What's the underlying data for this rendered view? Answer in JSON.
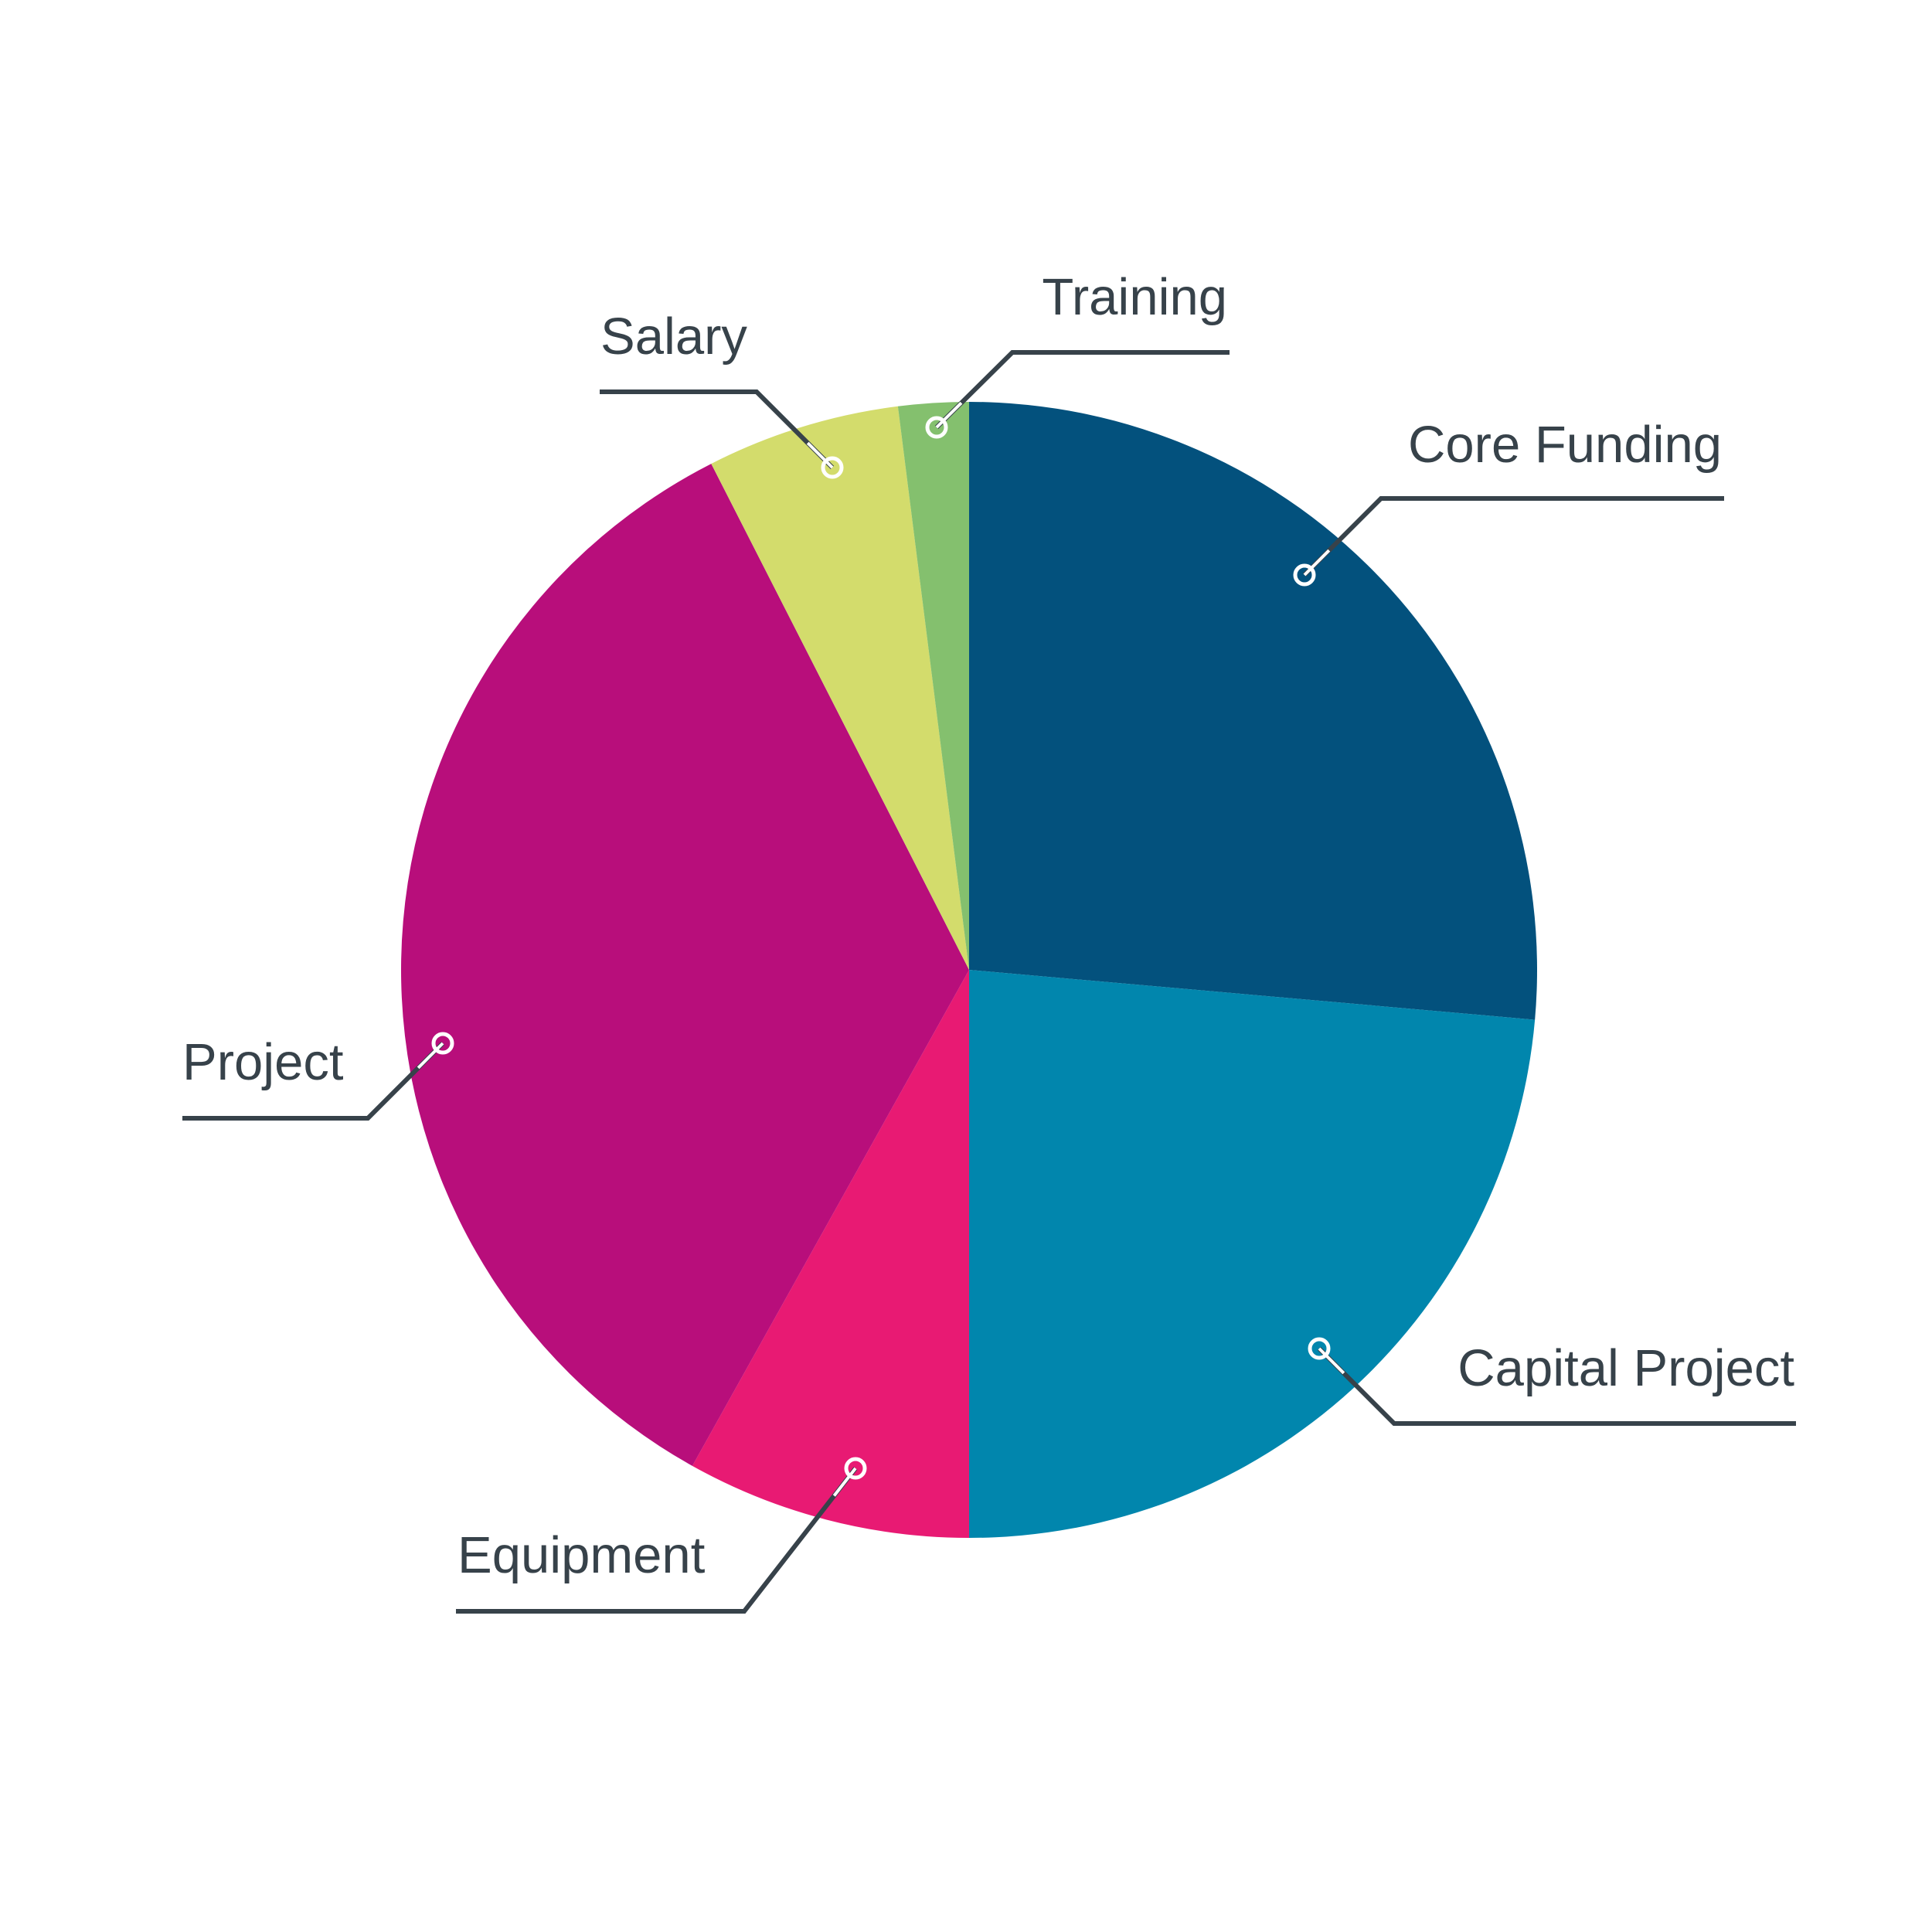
{
  "chart_data": {
    "type": "pie",
    "title": "",
    "start": "12 o'clock",
    "direction": "clockwise",
    "slices": [
      {
        "label": "Core Funding",
        "value": 26.4,
        "color": "#03517d"
      },
      {
        "label": "Capital Project",
        "value": 23.6,
        "color": "#0186ad"
      },
      {
        "label": "Equipment",
        "value": 8.1,
        "color": "#e81a73"
      },
      {
        "label": "Project",
        "value": 34.4,
        "color": "#b80e7b"
      },
      {
        "label": "Salary",
        "value": 5.5,
        "color": "#d3dc6c"
      },
      {
        "label": "Training",
        "value": 2.0,
        "color": "#84c06e"
      }
    ],
    "legend": "none",
    "labels": "callout lines"
  }
}
